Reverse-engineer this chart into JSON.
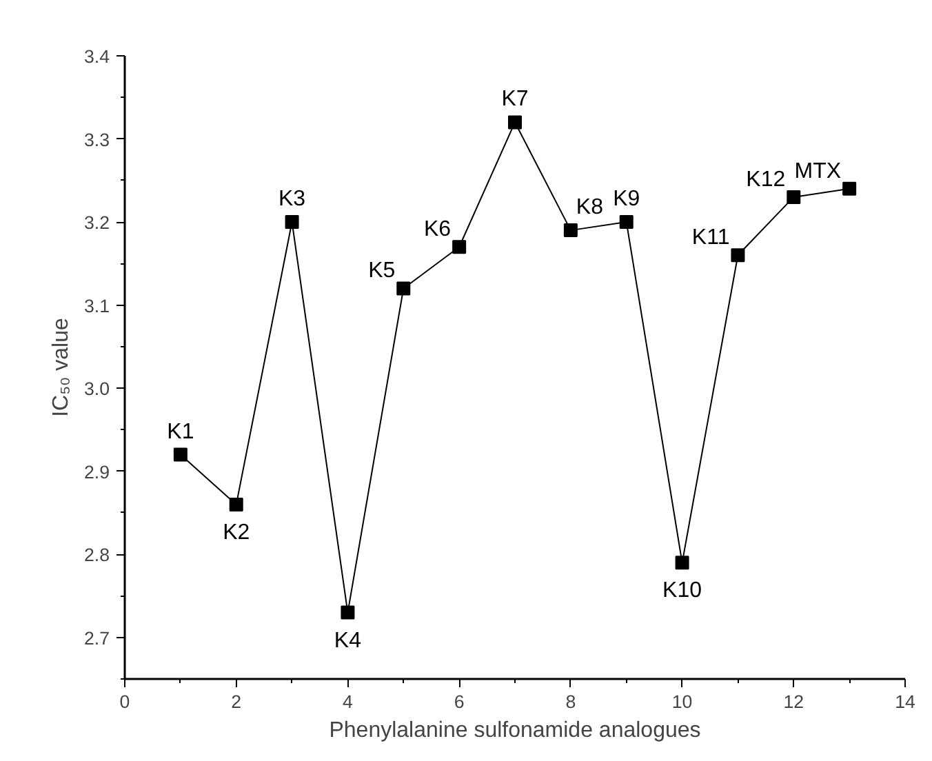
{
  "chart_data": {
    "type": "line",
    "xlabel": "Phenylalanine sulfonamide analogues",
    "ylabel": "IC₅₀ value",
    "x": [
      1,
      2,
      3,
      4,
      5,
      6,
      7,
      8,
      9,
      10,
      11,
      12,
      13
    ],
    "series": [
      {
        "color": "#000000",
        "values": [
          2.92,
          2.86,
          3.2,
          2.73,
          3.12,
          3.17,
          3.32,
          3.19,
          3.2,
          2.79,
          3.16,
          3.23,
          3.24
        ]
      }
    ],
    "xlim": [
      0,
      14
    ],
    "xticks": [
      0,
      2,
      4,
      6,
      8,
      10,
      12,
      14
    ],
    "ylim": [
      2.65,
      3.4
    ],
    "yticks": [
      2.7,
      2.8,
      2.9,
      {
        "value": 3.0,
        "label": "3.0"
      },
      3.1,
      3.2,
      3.3,
      3.4
    ],
    "grid": false,
    "marker": "square",
    "line_style": "solid",
    "annotations": [
      {
        "text": "K1",
        "x": 1,
        "y": 2.92
      },
      {
        "text": "K2",
        "x": 2,
        "y": 2.86
      },
      {
        "text": "K3",
        "x": 3,
        "y": 3.2
      },
      {
        "text": "K4",
        "x": 4,
        "y": 2.73
      },
      {
        "text": "K5",
        "x": 5,
        "y": 3.12
      },
      {
        "text": "K6",
        "x": 6,
        "y": 3.17
      },
      {
        "text": "K7",
        "x": 7,
        "y": 3.32
      },
      {
        "text": "K8",
        "x": 8,
        "y": 3.19
      },
      {
        "text": "K9",
        "x": 9,
        "y": 3.2
      },
      {
        "text": "K10",
        "x": 10,
        "y": 2.79
      },
      {
        "text": "K11",
        "x": 11,
        "y": 3.16
      },
      {
        "text": "K12",
        "x": 12,
        "y": 3.23
      },
      {
        "text": "MTX",
        "x": 13,
        "y": 3.24
      }
    ]
  }
}
